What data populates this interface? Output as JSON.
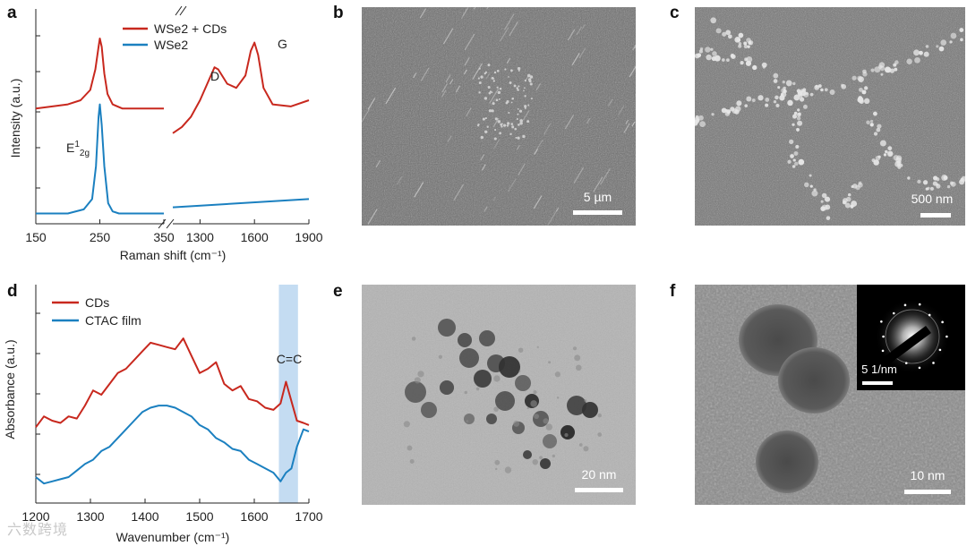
{
  "panels": {
    "a": "a",
    "b": "b",
    "c": "c",
    "d": "d",
    "e": "e",
    "f": "f"
  },
  "chart_data": [
    {
      "panel": "a",
      "type": "line",
      "xlabel": "Raman shift (cm⁻¹)",
      "ylabel": "Intensity (a.u.)",
      "x_ticks_left": [
        "150",
        "250",
        "350"
      ],
      "x_ticks_right": [
        "1300",
        "1600",
        "1900"
      ],
      "broken_axis": true,
      "legend_placement": "top-center",
      "annotations": {
        "D": "D",
        "G": "G",
        "E_main": "E",
        "E_sup": "1",
        "E_sub": "2g"
      },
      "series": [
        {
          "name": "WSe2 + CDs",
          "color": "#c8281e",
          "left": {
            "x": [
              150,
              200,
              220,
              235,
              243,
              248,
              250,
              253,
              257,
              262,
              270,
              285,
              310,
              350
            ],
            "y": [
              0.56,
              0.58,
              0.6,
              0.65,
              0.75,
              0.86,
              0.9,
              0.86,
              0.73,
              0.63,
              0.58,
              0.56,
              0.56,
              0.56
            ]
          },
          "right": {
            "x": [
              1150,
              1200,
              1250,
              1300,
              1350,
              1380,
              1400,
              1450,
              1500,
              1550,
              1580,
              1600,
              1620,
              1650,
              1700,
              1800,
              1900
            ],
            "y": [
              0.44,
              0.47,
              0.52,
              0.6,
              0.7,
              0.76,
              0.75,
              0.68,
              0.66,
              0.72,
              0.84,
              0.88,
              0.82,
              0.66,
              0.58,
              0.57,
              0.6
            ]
          }
        },
        {
          "name": "WSe2",
          "color": "#1b80c0",
          "left": {
            "x": [
              150,
              200,
              225,
              238,
              244,
              248,
              250,
              253,
              257,
              263,
              270,
              280,
              300,
              350
            ],
            "y": [
              0.05,
              0.05,
              0.07,
              0.12,
              0.28,
              0.52,
              0.58,
              0.48,
              0.28,
              0.1,
              0.06,
              0.05,
              0.05,
              0.05
            ]
          },
          "right": {
            "x": [
              1150,
              1900
            ],
            "y": [
              0.08,
              0.12
            ]
          }
        }
      ]
    },
    {
      "panel": "d",
      "type": "line",
      "xlabel": "Wavenumber (cm⁻¹)",
      "ylabel": "Absorbance (a.u.)",
      "xlim": [
        1200,
        1700
      ],
      "x_ticks": [
        "1200",
        "1300",
        "1400",
        "1500",
        "1600",
        "1700"
      ],
      "highlight": {
        "from": 1645,
        "to": 1680,
        "label": "C=C",
        "color": "#c4dcf2"
      },
      "legend_placement": "top-left",
      "series": [
        {
          "name": "CDs",
          "color": "#c8281e",
          "x": [
            1200,
            1215,
            1230,
            1245,
            1260,
            1275,
            1290,
            1305,
            1320,
            1335,
            1350,
            1365,
            1380,
            1395,
            1410,
            1425,
            1440,
            1455,
            1470,
            1485,
            1500,
            1515,
            1530,
            1545,
            1560,
            1575,
            1590,
            1605,
            1620,
            1635,
            1648,
            1658,
            1668,
            1678,
            1690,
            1700
          ],
          "y": [
            0.35,
            0.4,
            0.38,
            0.37,
            0.4,
            0.39,
            0.45,
            0.52,
            0.5,
            0.55,
            0.6,
            0.62,
            0.66,
            0.7,
            0.74,
            0.73,
            0.72,
            0.71,
            0.76,
            0.68,
            0.6,
            0.62,
            0.65,
            0.55,
            0.52,
            0.54,
            0.48,
            0.47,
            0.44,
            0.43,
            0.46,
            0.56,
            0.47,
            0.38,
            0.37,
            0.36
          ]
        },
        {
          "name": "CTAC film",
          "color": "#1b80c0",
          "x": [
            1200,
            1215,
            1230,
            1245,
            1260,
            1275,
            1290,
            1305,
            1320,
            1335,
            1350,
            1365,
            1380,
            1395,
            1410,
            1425,
            1440,
            1455,
            1470,
            1485,
            1500,
            1515,
            1530,
            1545,
            1560,
            1575,
            1590,
            1605,
            1620,
            1635,
            1648,
            1658,
            1668,
            1678,
            1690,
            1700
          ],
          "y": [
            0.12,
            0.09,
            0.1,
            0.11,
            0.12,
            0.15,
            0.18,
            0.2,
            0.24,
            0.26,
            0.3,
            0.34,
            0.38,
            0.42,
            0.44,
            0.45,
            0.45,
            0.44,
            0.42,
            0.4,
            0.36,
            0.34,
            0.3,
            0.28,
            0.25,
            0.24,
            0.2,
            0.18,
            0.16,
            0.14,
            0.1,
            0.14,
            0.16,
            0.26,
            0.34,
            0.33
          ]
        }
      ]
    }
  ],
  "images": {
    "b": {
      "kind": "SEM",
      "scale_label": "5 µm"
    },
    "c": {
      "kind": "SEM",
      "scale_label": "500 nm"
    },
    "e": {
      "kind": "TEM",
      "scale_label": "20 nm"
    },
    "f": {
      "kind": "TEM",
      "scale_label": "10 nm",
      "inset_label": "5 1/nm"
    }
  },
  "watermark": "六数跨境",
  "colors": {
    "red": "#c8281e",
    "blue": "#1b80c0",
    "highlight": "#c4dcf2"
  }
}
